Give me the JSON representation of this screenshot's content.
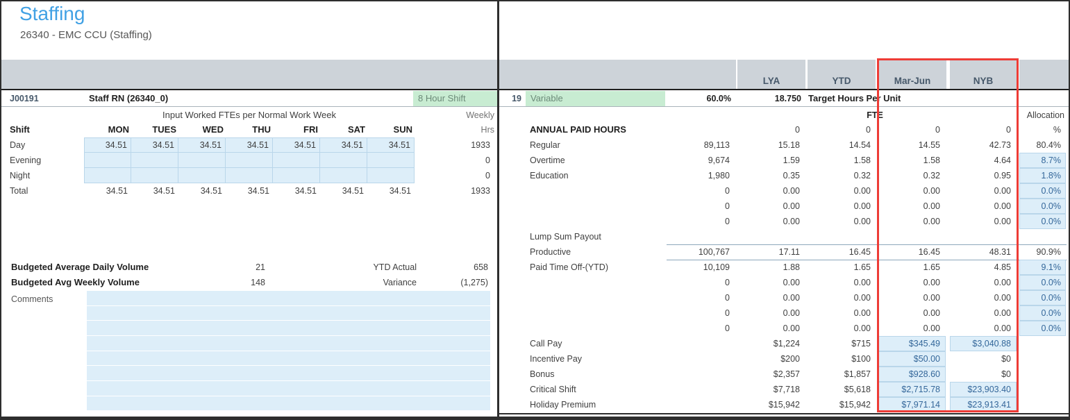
{
  "page": {
    "title": "Staffing",
    "subtitle": "26340 - EMC CCU (Staffing)"
  },
  "left_panel": {
    "job_row": {
      "job_id": "J00191",
      "job_name": "Staff RN (26340_0)",
      "shift_badge": "8 Hour Shift"
    },
    "grid_title": "Input Worked FTEs per Normal Work Week",
    "weekly_label": "Weekly",
    "hrs_label": "Hrs",
    "shift_label": "Shift",
    "day_headers": [
      "MON",
      "TUES",
      "WED",
      "THU",
      "FRI",
      "SAT",
      "SUN"
    ],
    "shift_rows": [
      {
        "label": "Day",
        "input": true,
        "values": [
          "34.51",
          "34.51",
          "34.51",
          "34.51",
          "34.51",
          "34.51",
          "34.51"
        ],
        "weekly": "1933"
      },
      {
        "label": "Evening",
        "input": true,
        "values": [
          "",
          "",
          "",
          "",
          "",
          "",
          ""
        ],
        "weekly": "0"
      },
      {
        "label": "Night",
        "input": true,
        "values": [
          "",
          "",
          "",
          "",
          "",
          "",
          ""
        ],
        "weekly": "0"
      },
      {
        "label": "Total",
        "input": false,
        "values": [
          "34.51",
          "34.51",
          "34.51",
          "34.51",
          "34.51",
          "34.51",
          "34.51"
        ],
        "weekly": "1933"
      }
    ],
    "stats": [
      {
        "label": "Budgeted Average Daily Volume",
        "value": "21",
        "label2": "YTD Actual",
        "value2": "658"
      },
      {
        "label": "Budgeted Avg Weekly Volume",
        "value": "148",
        "label2": "Variance",
        "value2": "(1,275)"
      }
    ],
    "comments_label": "Comments",
    "comments_row_count": 8
  },
  "right_panel": {
    "column_headers": [
      "LYA",
      "YTD",
      "Mar-Jun",
      "NYB"
    ],
    "target_row": {
      "row_num": "19",
      "type": "Variable",
      "percent": "60.0%",
      "hours": "18.750",
      "label": "Target Hours Per Unit"
    },
    "fte_label": "FTE",
    "allocation_label": "Allocation",
    "annual_row": {
      "label": "ANNUAL PAID HOURS",
      "values": [
        "0",
        "0",
        "0",
        "0"
      ],
      "pct_label": "%"
    },
    "rows": [
      {
        "label": "Regular",
        "a": "89,113",
        "lya": "15.18",
        "ytd": "14.54",
        "mj": "14.55",
        "nyb": "42.73",
        "alloc": "80.4%"
      },
      {
        "label": "Overtime",
        "a": "9,674",
        "lya": "1.59",
        "ytd": "1.58",
        "mj": "1.58",
        "nyb": "4.64",
        "alloc": "8.7%",
        "allocBlue": true
      },
      {
        "label": "Education",
        "a": "1,980",
        "lya": "0.35",
        "ytd": "0.32",
        "mj": "0.32",
        "nyb": "0.95",
        "alloc": "1.8%",
        "allocBlue": true
      },
      {
        "label": "",
        "a": "0",
        "lya": "0.00",
        "ytd": "0.00",
        "mj": "0.00",
        "nyb": "0.00",
        "alloc": "0.0%",
        "allocBlue": true
      },
      {
        "label": "",
        "a": "0",
        "lya": "0.00",
        "ytd": "0.00",
        "mj": "0.00",
        "nyb": "0.00",
        "alloc": "0.0%",
        "allocBlue": true
      },
      {
        "label": "",
        "a": "0",
        "lya": "0.00",
        "ytd": "0.00",
        "mj": "0.00",
        "nyb": "0.00",
        "alloc": "0.0%",
        "allocBlue": true
      },
      {
        "label": "Lump Sum Payout"
      },
      {
        "label": "Productive",
        "a": "100,767",
        "lya": "17.11",
        "ytd": "16.45",
        "mj": "16.45",
        "nyb": "48.31",
        "alloc": "90.9%",
        "subtotal": true
      },
      {
        "label": "Paid Time Off-(YTD)",
        "a": "10,109",
        "lya": "1.88",
        "ytd": "1.65",
        "mj": "1.65",
        "nyb": "4.85",
        "alloc": "9.1%",
        "allocBlue": true
      },
      {
        "label": "",
        "a": "0",
        "lya": "0.00",
        "ytd": "0.00",
        "mj": "0.00",
        "nyb": "0.00",
        "alloc": "0.0%",
        "allocBlue": true
      },
      {
        "label": "",
        "a": "0",
        "lya": "0.00",
        "ytd": "0.00",
        "mj": "0.00",
        "nyb": "0.00",
        "alloc": "0.0%",
        "allocBlue": true
      },
      {
        "label": "",
        "a": "0",
        "lya": "0.00",
        "ytd": "0.00",
        "mj": "0.00",
        "nyb": "0.00",
        "alloc": "0.0%",
        "allocBlue": true
      },
      {
        "label": "",
        "a": "0",
        "lya": "0.00",
        "ytd": "0.00",
        "mj": "0.00",
        "nyb": "0.00",
        "alloc": "0.0%",
        "allocBlue": true
      },
      {
        "label": "Call Pay",
        "lya": "$1,224",
        "ytd": "$715",
        "mj": "$345.49",
        "mjBlue": true,
        "nyb": "$3,040.88",
        "nybBlue": true
      },
      {
        "label": "Incentive Pay",
        "lya": "$200",
        "ytd": "$100",
        "mj": "$50.00",
        "mjBlue": true,
        "nyb": "$0"
      },
      {
        "label": "Bonus",
        "lya": "$2,357",
        "ytd": "$1,857",
        "mj": "$928.60",
        "mjBlue": true,
        "nyb": "$0"
      },
      {
        "label": "Critical Shift",
        "lya": "$7,718",
        "ytd": "$5,618",
        "mj": "$2,715.78",
        "mjBlue": true,
        "nyb": "$23,903.40",
        "nybBlue": true
      },
      {
        "label": "Holiday Premium",
        "lya": "$15,942",
        "ytd": "$15,942",
        "mj": "$7,971.14",
        "mjBlue": true,
        "nyb": "$23,913.41",
        "nybBlue": true
      }
    ]
  },
  "colors": {
    "accent": "#41a1e4",
    "graybar": "#cdd3d9",
    "slate": "#46586a",
    "greenbg": "#c8ecd2",
    "greentext": "#6b8a78",
    "cellblue": "#ddeef9",
    "cellborder": "#b9d6ea",
    "bluetext": "#34679a",
    "redbox": "#ee3c36",
    "text": "#3f3f3f",
    "boldtext": "#1f1f1f",
    "muted": "#737373",
    "line": "#a9b3ba",
    "subline": "#8ca7bb",
    "dark": "#1f1f1f"
  }
}
